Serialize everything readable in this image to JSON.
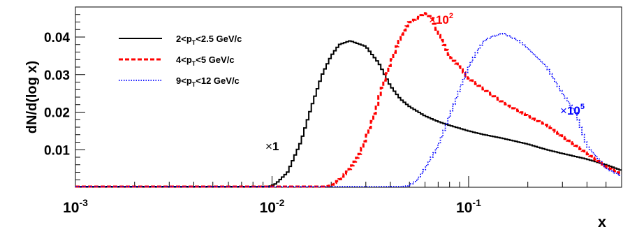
{
  "chart_data": {
    "type": "line",
    "ylabel": "dN/d(log x)",
    "xlabel": "x",
    "x_scale": "log",
    "xlim": [
      0.001,
      0.6
    ],
    "ylim": [
      0,
      0.048
    ],
    "x_ticks": [
      {
        "value": 0.001,
        "base": "10",
        "exp": "-3"
      },
      {
        "value": 0.01,
        "base": "10",
        "exp": "-2"
      },
      {
        "value": 0.1,
        "base": "10",
        "exp": "-1"
      }
    ],
    "y_ticks": [
      {
        "value": 0.01,
        "label": "0.01"
      },
      {
        "value": 0.02,
        "label": "0.02"
      },
      {
        "value": 0.03,
        "label": "0.03"
      },
      {
        "value": 0.04,
        "label": "0.04"
      }
    ],
    "legend_position": "top-left",
    "series": [
      {
        "legend": {
          "pre": "2<p",
          "sub": "T",
          "post": "<2.5 GeV/c"
        },
        "color": "#000000",
        "style": "solid",
        "annotation": {
          "sym": "×",
          "base": "1",
          "exp": ""
        },
        "x": [
          0.001,
          0.0095,
          0.0105,
          0.012,
          0.014,
          0.016,
          0.018,
          0.02,
          0.022,
          0.025,
          0.03,
          0.035,
          0.04,
          0.045,
          0.05,
          0.06,
          0.07,
          0.08,
          0.1,
          0.12,
          0.15,
          0.2,
          0.25,
          0.3,
          0.4,
          0.5,
          0.6
        ],
        "y": [
          0.0,
          0.0,
          0.001,
          0.004,
          0.012,
          0.022,
          0.03,
          0.035,
          0.038,
          0.039,
          0.0375,
          0.033,
          0.027,
          0.0235,
          0.0215,
          0.019,
          0.0175,
          0.0165,
          0.015,
          0.014,
          0.013,
          0.0115,
          0.01,
          0.009,
          0.0075,
          0.006,
          0.0045
        ]
      },
      {
        "legend": {
          "pre": "4<p",
          "sub": "T",
          "post": "<5 GeV/c"
        },
        "color": "#ff0000",
        "style": "dashed",
        "annotation": {
          "sym": "×",
          "base": "10",
          "exp": "2"
        },
        "x": [
          0.001,
          0.018,
          0.02,
          0.022,
          0.025,
          0.028,
          0.03,
          0.033,
          0.036,
          0.04,
          0.045,
          0.05,
          0.055,
          0.06,
          0.065,
          0.07,
          0.08,
          0.09,
          0.1,
          0.12,
          0.15,
          0.2,
          0.25,
          0.3,
          0.4,
          0.5,
          0.6
        ],
        "y": [
          0.0,
          0.0,
          0.0005,
          0.002,
          0.005,
          0.009,
          0.013,
          0.019,
          0.026,
          0.033,
          0.04,
          0.044,
          0.045,
          0.0465,
          0.045,
          0.041,
          0.035,
          0.032,
          0.029,
          0.026,
          0.0225,
          0.019,
          0.0165,
          0.0135,
          0.009,
          0.0055,
          0.0035
        ]
      },
      {
        "legend": {
          "pre": "9<p",
          "sub": "T",
          "post": "<12 GeV/c"
        },
        "color": "#0000ff",
        "style": "dotted",
        "annotation": {
          "sym": "×",
          "base": "10",
          "exp": "5"
        },
        "x": [
          0.001,
          0.045,
          0.05,
          0.055,
          0.06,
          0.07,
          0.08,
          0.09,
          0.1,
          0.11,
          0.12,
          0.13,
          0.15,
          0.18,
          0.2,
          0.25,
          0.3,
          0.35,
          0.4,
          0.45,
          0.5,
          0.6
        ],
        "y": [
          0.0,
          0.0,
          0.0005,
          0.002,
          0.005,
          0.011,
          0.019,
          0.026,
          0.032,
          0.036,
          0.039,
          0.04,
          0.041,
          0.039,
          0.037,
          0.032,
          0.025,
          0.02,
          0.011,
          0.008,
          0.005,
          0.003
        ]
      }
    ]
  }
}
